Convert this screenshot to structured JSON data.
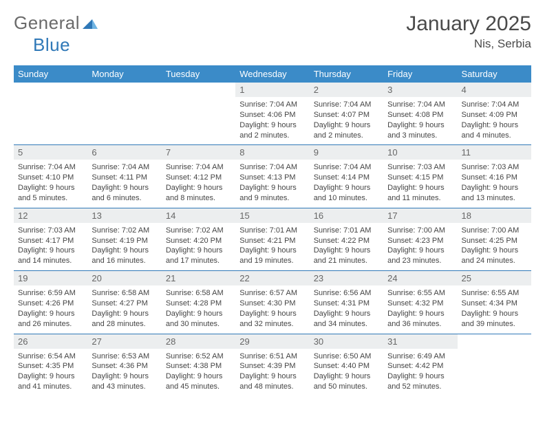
{
  "brand": {
    "word1": "General",
    "word2": "Blue"
  },
  "title": "January 2025",
  "location": "Nis, Serbia",
  "colors": {
    "header_bg": "#3b8bc8",
    "header_text": "#ffffff",
    "daynum_bg": "#eceeef",
    "daynum_text": "#666666",
    "border": "#2f78b7",
    "logo_gray": "#6a6a6a",
    "logo_blue": "#2f78b7"
  },
  "daysOfWeek": [
    "Sunday",
    "Monday",
    "Tuesday",
    "Wednesday",
    "Thursday",
    "Friday",
    "Saturday"
  ],
  "weeks": [
    [
      {
        "empty": true
      },
      {
        "empty": true
      },
      {
        "empty": true
      },
      {
        "n": "1",
        "sunrise": "7:04 AM",
        "sunset": "4:06 PM",
        "dl": "9 hours and 2 minutes."
      },
      {
        "n": "2",
        "sunrise": "7:04 AM",
        "sunset": "4:07 PM",
        "dl": "9 hours and 2 minutes."
      },
      {
        "n": "3",
        "sunrise": "7:04 AM",
        "sunset": "4:08 PM",
        "dl": "9 hours and 3 minutes."
      },
      {
        "n": "4",
        "sunrise": "7:04 AM",
        "sunset": "4:09 PM",
        "dl": "9 hours and 4 minutes."
      }
    ],
    [
      {
        "n": "5",
        "sunrise": "7:04 AM",
        "sunset": "4:10 PM",
        "dl": "9 hours and 5 minutes."
      },
      {
        "n": "6",
        "sunrise": "7:04 AM",
        "sunset": "4:11 PM",
        "dl": "9 hours and 6 minutes."
      },
      {
        "n": "7",
        "sunrise": "7:04 AM",
        "sunset": "4:12 PM",
        "dl": "9 hours and 8 minutes."
      },
      {
        "n": "8",
        "sunrise": "7:04 AM",
        "sunset": "4:13 PM",
        "dl": "9 hours and 9 minutes."
      },
      {
        "n": "9",
        "sunrise": "7:04 AM",
        "sunset": "4:14 PM",
        "dl": "9 hours and 10 minutes."
      },
      {
        "n": "10",
        "sunrise": "7:03 AM",
        "sunset": "4:15 PM",
        "dl": "9 hours and 11 minutes."
      },
      {
        "n": "11",
        "sunrise": "7:03 AM",
        "sunset": "4:16 PM",
        "dl": "9 hours and 13 minutes."
      }
    ],
    [
      {
        "n": "12",
        "sunrise": "7:03 AM",
        "sunset": "4:17 PM",
        "dl": "9 hours and 14 minutes."
      },
      {
        "n": "13",
        "sunrise": "7:02 AM",
        "sunset": "4:19 PM",
        "dl": "9 hours and 16 minutes."
      },
      {
        "n": "14",
        "sunrise": "7:02 AM",
        "sunset": "4:20 PM",
        "dl": "9 hours and 17 minutes."
      },
      {
        "n": "15",
        "sunrise": "7:01 AM",
        "sunset": "4:21 PM",
        "dl": "9 hours and 19 minutes."
      },
      {
        "n": "16",
        "sunrise": "7:01 AM",
        "sunset": "4:22 PM",
        "dl": "9 hours and 21 minutes."
      },
      {
        "n": "17",
        "sunrise": "7:00 AM",
        "sunset": "4:23 PM",
        "dl": "9 hours and 23 minutes."
      },
      {
        "n": "18",
        "sunrise": "7:00 AM",
        "sunset": "4:25 PM",
        "dl": "9 hours and 24 minutes."
      }
    ],
    [
      {
        "n": "19",
        "sunrise": "6:59 AM",
        "sunset": "4:26 PM",
        "dl": "9 hours and 26 minutes."
      },
      {
        "n": "20",
        "sunrise": "6:58 AM",
        "sunset": "4:27 PM",
        "dl": "9 hours and 28 minutes."
      },
      {
        "n": "21",
        "sunrise": "6:58 AM",
        "sunset": "4:28 PM",
        "dl": "9 hours and 30 minutes."
      },
      {
        "n": "22",
        "sunrise": "6:57 AM",
        "sunset": "4:30 PM",
        "dl": "9 hours and 32 minutes."
      },
      {
        "n": "23",
        "sunrise": "6:56 AM",
        "sunset": "4:31 PM",
        "dl": "9 hours and 34 minutes."
      },
      {
        "n": "24",
        "sunrise": "6:55 AM",
        "sunset": "4:32 PM",
        "dl": "9 hours and 36 minutes."
      },
      {
        "n": "25",
        "sunrise": "6:55 AM",
        "sunset": "4:34 PM",
        "dl": "9 hours and 39 minutes."
      }
    ],
    [
      {
        "n": "26",
        "sunrise": "6:54 AM",
        "sunset": "4:35 PM",
        "dl": "9 hours and 41 minutes."
      },
      {
        "n": "27",
        "sunrise": "6:53 AM",
        "sunset": "4:36 PM",
        "dl": "9 hours and 43 minutes."
      },
      {
        "n": "28",
        "sunrise": "6:52 AM",
        "sunset": "4:38 PM",
        "dl": "9 hours and 45 minutes."
      },
      {
        "n": "29",
        "sunrise": "6:51 AM",
        "sunset": "4:39 PM",
        "dl": "9 hours and 48 minutes."
      },
      {
        "n": "30",
        "sunrise": "6:50 AM",
        "sunset": "4:40 PM",
        "dl": "9 hours and 50 minutes."
      },
      {
        "n": "31",
        "sunrise": "6:49 AM",
        "sunset": "4:42 PM",
        "dl": "9 hours and 52 minutes."
      },
      {
        "empty": true
      }
    ]
  ],
  "labels": {
    "sunrise": "Sunrise:",
    "sunset": "Sunset:",
    "daylight": "Daylight:"
  }
}
